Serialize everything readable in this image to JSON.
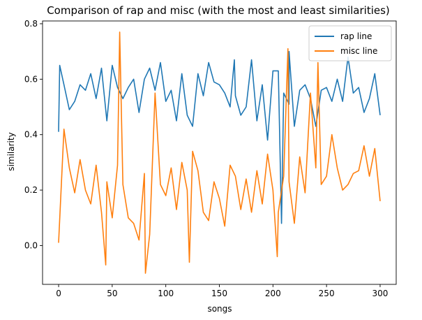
{
  "chart_data": {
    "type": "line",
    "title": "Comparison of rap and misc (with the most and least similarities)",
    "xlabel": "songs",
    "ylabel": "similarity",
    "xlim": [
      -15,
      315
    ],
    "ylim": [
      -0.14,
      0.81
    ],
    "x_ticks": [
      0,
      50,
      100,
      150,
      200,
      250,
      300
    ],
    "y_ticks": [
      0.0,
      0.2,
      0.4,
      0.6,
      0.8
    ],
    "x_tick_labels": [
      "0",
      "50",
      "100",
      "150",
      "200",
      "250",
      "300"
    ],
    "y_tick_labels": [
      "0.0",
      "0.2",
      "0.4",
      "0.6",
      "0.8"
    ],
    "grid": false,
    "legend": {
      "placement": "top-right"
    },
    "x_start": 0,
    "x_step": 5,
    "series": [
      {
        "name": "rap line",
        "color": "#1f77b4",
        "values": [
          0.41,
          0.58,
          0.49,
          0.52,
          0.58,
          0.56,
          0.62,
          0.53,
          0.64,
          0.45,
          0.65,
          0.57,
          0.53,
          0.57,
          0.6,
          0.48,
          0.6,
          0.64,
          0.56,
          0.66,
          0.52,
          0.56,
          0.45,
          0.62,
          0.47,
          0.43,
          0.62,
          0.54,
          0.66,
          0.59,
          0.58,
          0.55,
          0.5,
          0.54,
          0.47,
          0.5,
          0.67,
          0.45,
          0.58,
          0.38,
          0.63,
          0.63,
          0.55,
          0.51,
          0.43,
          0.56,
          0.58,
          0.53,
          0.43,
          0.56,
          0.57,
          0.52,
          0.6,
          0.52,
          0.68,
          0.55,
          0.57,
          0.48,
          0.53,
          0.62,
          0.47
        ]
      },
      {
        "name": "misc line",
        "color": "#ff7f0e",
        "values": [
          0.01,
          0.42,
          0.28,
          0.19,
          0.31,
          0.2,
          0.15,
          0.29,
          0.12,
          0.23,
          0.1,
          0.29,
          0.22,
          0.1,
          0.08,
          0.02,
          0.26,
          0.04,
          0.55,
          0.22,
          0.18,
          0.28,
          0.13,
          0.3,
          0.2,
          0.34,
          0.27,
          0.12,
          0.09,
          0.23,
          0.17,
          0.07,
          0.29,
          0.25,
          0.13,
          0.24,
          0.12,
          0.27,
          0.15,
          0.33,
          0.2,
          0.12,
          0.25,
          0.23,
          0.08,
          0.32,
          0.19,
          0.55,
          0.28,
          0.22,
          0.25,
          0.4,
          0.28,
          0.2,
          0.22,
          0.26,
          0.27,
          0.36,
          0.25,
          0.35,
          0.16
        ]
      }
    ],
    "annotations": [
      {
        "series": "misc line",
        "x": 57,
        "y": 0.77
      },
      {
        "series": "misc line",
        "x": 81,
        "y": -0.1
      },
      {
        "series": "misc line",
        "x": 44,
        "y": -0.07
      },
      {
        "series": "misc line",
        "x": 214,
        "y": 0.71
      },
      {
        "series": "misc line",
        "x": 242,
        "y": 0.66
      },
      {
        "series": "misc line",
        "x": 204,
        "y": -0.04
      },
      {
        "series": "misc line",
        "x": 122,
        "y": -0.06
      },
      {
        "series": "rap line",
        "x": 215,
        "y": 0.7
      },
      {
        "series": "rap line",
        "x": 164,
        "y": 0.67
      },
      {
        "series": "rap line",
        "x": 1,
        "y": 0.65
      },
      {
        "series": "rap line",
        "x": 208,
        "y": 0.08
      }
    ]
  }
}
